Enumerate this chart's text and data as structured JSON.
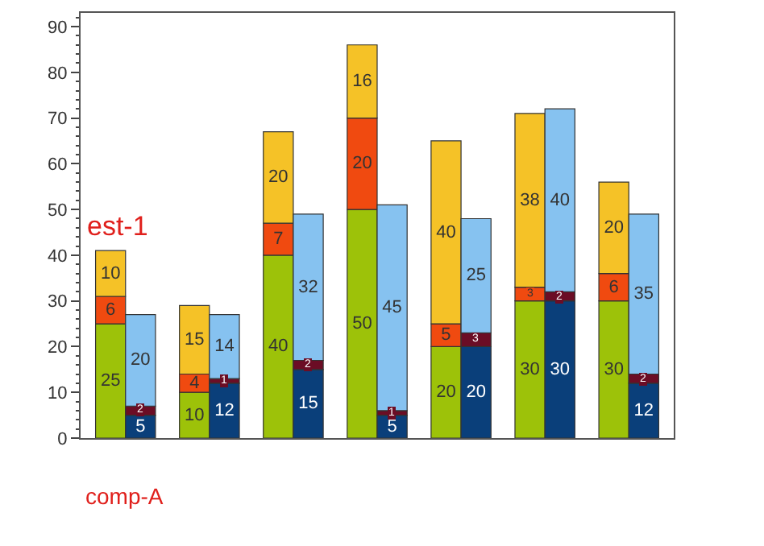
{
  "chart_data": {
    "type": "bar",
    "stacked": true,
    "data_labels": true,
    "categories": [
      null,
      null,
      null,
      null,
      null,
      null,
      null,
      null,
      null,
      null,
      null,
      null,
      null,
      null
    ],
    "ylim": [
      0,
      93
    ],
    "yticks": [
      0,
      10,
      20,
      30,
      40,
      50,
      60,
      70,
      80,
      90
    ],
    "annotations": [
      "est-1",
      "comp-A"
    ],
    "series": [
      {
        "color": "#9dc209",
        "values": [
          25,
          null,
          10,
          null,
          40,
          null,
          50,
          null,
          20,
          null,
          30,
          null,
          30,
          null
        ]
      },
      {
        "color": "#f04a10",
        "values": [
          6,
          null,
          4,
          null,
          7,
          null,
          20,
          null,
          5,
          null,
          3,
          null,
          6,
          null
        ]
      },
      {
        "color": "#f5c227",
        "values": [
          10,
          null,
          15,
          null,
          20,
          null,
          16,
          null,
          40,
          null,
          38,
          null,
          20,
          null
        ]
      },
      {
        "color": "#0a3f7a",
        "values": [
          null,
          5,
          null,
          12,
          null,
          15,
          null,
          5,
          null,
          20,
          null,
          30,
          null,
          12
        ]
      },
      {
        "color": "#6b0d25",
        "values": [
          null,
          2,
          null,
          1,
          null,
          2,
          null,
          1,
          null,
          3,
          null,
          2,
          null,
          2
        ]
      },
      {
        "color": "#86c2f0",
        "values": [
          null,
          20,
          null,
          14,
          null,
          32,
          null,
          45,
          null,
          25,
          null,
          40,
          null,
          35
        ]
      }
    ]
  }
}
